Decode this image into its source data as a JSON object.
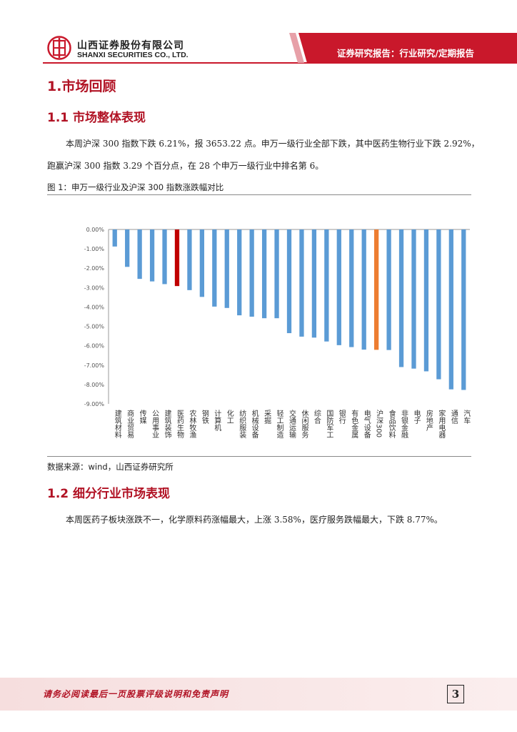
{
  "header": {
    "company_cn": "山西证券股份有限公司",
    "company_en": "SHANXI SECURITIES CO., LTD.",
    "report_type": "证券研究报告：行业研究/定期报告"
  },
  "section1": {
    "title": "1.市场回顾"
  },
  "section1_1": {
    "title": "1.1 市场整体表现",
    "lines": [
      "本周沪深 300 指数下跌 6.21%，报 3653.22 点。申万一级行业全部下跌，其中医药生物行业下跌 2.92%，",
      "跑赢沪深 300 指数 3.29 个百分点，在 28 个申万一级行业中排名第 6。"
    ]
  },
  "figure1": {
    "title": "图 1：申万一级行业及沪深 300 指数涨跌幅对比",
    "source": "数据来源：wind，山西证券研究所"
  },
  "chart_data": {
    "type": "bar",
    "title": "",
    "xlabel": "",
    "ylabel": "",
    "ylim": [
      -9,
      0
    ],
    "yticks": [
      "0.00%",
      "-1.00%",
      "-2.00%",
      "-3.00%",
      "-4.00%",
      "-5.00%",
      "-6.00%",
      "-7.00%",
      "-8.00%",
      "-9.00%"
    ],
    "categories": [
      "建筑材料",
      "商业贸易",
      "传媒",
      "公用事业",
      "建筑装饰",
      "医药生物",
      "农林牧渔",
      "钢铁",
      "计算机",
      "化工",
      "纺织服装",
      "机械设备",
      "采掘",
      "轻工制造",
      "交通运输",
      "休闲服务",
      "综合",
      "国防军工",
      "银行",
      "有色金属",
      "电气设备",
      "沪深300",
      "食品饮料",
      "非银金融",
      "电子",
      "房地产",
      "家用电器",
      "通信",
      "汽车"
    ],
    "values": [
      -0.88,
      -1.93,
      -2.55,
      -2.68,
      -2.82,
      -2.92,
      -3.13,
      -3.48,
      -3.98,
      -4.05,
      -4.43,
      -4.5,
      -4.58,
      -4.58,
      -5.35,
      -5.53,
      -5.58,
      -5.78,
      -5.97,
      -6.07,
      -6.2,
      -6.21,
      -6.22,
      -7.1,
      -7.18,
      -7.32,
      -7.73,
      -8.25,
      -8.28
    ],
    "colors": {
      "default": "#5b9bd5",
      "highlight": "#c00000",
      "index": "#ed7d31"
    },
    "highlight_category": "医药生物",
    "index_category": "沪深300"
  },
  "section1_2": {
    "title": "1.2 细分行业市场表现",
    "line": "本周医药子板块涨跌不一，化学原料药涨幅最大，上涨 3.58%，医疗服务跌幅最大，下跌 8.77%。"
  },
  "footer": {
    "disclaimer": "请务必阅读最后一页股票评级说明和免责声明",
    "page": "3"
  },
  "colors": {
    "brand_red": "#b11224",
    "banner_red": "#c9182b"
  }
}
